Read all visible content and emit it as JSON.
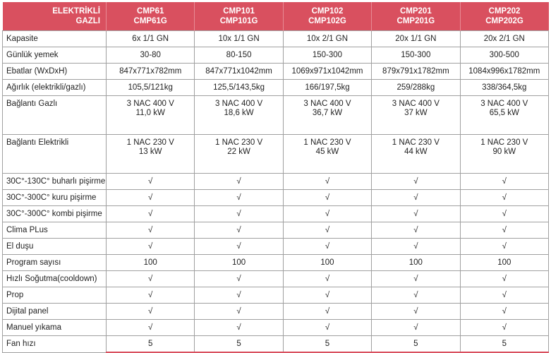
{
  "header": {
    "label": [
      "ELEKTRİKLİ",
      "GAZLI"
    ],
    "models": [
      [
        "CMP61",
        "CMP61G"
      ],
      [
        "CMP101",
        "CMP101G"
      ],
      [
        "CMP102",
        "CMP102G"
      ],
      [
        "CMP201",
        "CMP201G"
      ],
      [
        "CMP202",
        "CMP202G"
      ]
    ]
  },
  "colors": {
    "header_bg": "#d9505f",
    "header_text": "#ffffff"
  },
  "rows": [
    {
      "label": "Kapasite",
      "values": [
        [
          "6x 1/1 GN"
        ],
        [
          "10x 1/1 GN"
        ],
        [
          "10x 2/1 GN"
        ],
        [
          "20x 1/1 GN"
        ],
        [
          "20x 2/1 GN"
        ]
      ]
    },
    {
      "label": "Günlük yemek",
      "values": [
        [
          "30-80"
        ],
        [
          "80-150"
        ],
        [
          "150-300"
        ],
        [
          "150-300"
        ],
        [
          "300-500"
        ]
      ]
    },
    {
      "label": "Ebatlar (WxDxH)",
      "values": [
        [
          "847x771x782mm"
        ],
        [
          "847x771x1042mm"
        ],
        [
          "1069x971x1042mm"
        ],
        [
          "879x791x1782mm"
        ],
        [
          "1084x996x1782mm"
        ]
      ]
    },
    {
      "label": "Ağırlık (elektrikli/gazlı)",
      "values": [
        [
          "105,5/121kg"
        ],
        [
          "125,5/143,5kg"
        ],
        [
          "166/197,5kg"
        ],
        [
          "259/288kg"
        ],
        [
          "338/364,5kg"
        ]
      ]
    },
    {
      "label": "Bağlantı Gazlı",
      "tall": true,
      "values": [
        [
          "3 NAC 400 V",
          "11,0 kW"
        ],
        [
          "3 NAC 400 V",
          "18,6 kW"
        ],
        [
          "3 NAC 400 V",
          "36,7 kW"
        ],
        [
          "3 NAC 400 V",
          "37 kW"
        ],
        [
          "3 NAC 400 V",
          "65,5 kW"
        ]
      ]
    },
    {
      "label": "Bağlantı Elektrikli",
      "tall": true,
      "values": [
        [
          "1 NAC 230 V",
          "13 kW"
        ],
        [
          "1 NAC 230 V",
          "22 kW"
        ],
        [
          "1 NAC 230 V",
          "45 kW"
        ],
        [
          "1 NAC 230 V",
          "44 kW"
        ],
        [
          "1 NAC 230 V",
          "90 kW"
        ]
      ]
    },
    {
      "label": "30C°-130C° buharlı pişirme",
      "values": [
        [
          "√"
        ],
        [
          "√"
        ],
        [
          "√"
        ],
        [
          "√"
        ],
        [
          "√"
        ]
      ]
    },
    {
      "label": "30C°-300C° kuru pişirme",
      "values": [
        [
          "√"
        ],
        [
          "√"
        ],
        [
          "√"
        ],
        [
          "√"
        ],
        [
          "√"
        ]
      ]
    },
    {
      "label": "30C°-300C° kombi pişirme",
      "values": [
        [
          "√"
        ],
        [
          "√"
        ],
        [
          "√"
        ],
        [
          "√"
        ],
        [
          "√"
        ]
      ]
    },
    {
      "label": "Clima PLus",
      "values": [
        [
          "√"
        ],
        [
          "√"
        ],
        [
          "√"
        ],
        [
          "√"
        ],
        [
          "√"
        ]
      ]
    },
    {
      "label": "El duşu",
      "values": [
        [
          "√"
        ],
        [
          "√"
        ],
        [
          "√"
        ],
        [
          "√"
        ],
        [
          "√"
        ]
      ]
    },
    {
      "label": "Program sayısı",
      "values": [
        [
          "100"
        ],
        [
          "100"
        ],
        [
          "100"
        ],
        [
          "100"
        ],
        [
          "100"
        ]
      ]
    },
    {
      "label": "Hızlı Soğutma(cooldown)",
      "values": [
        [
          "√"
        ],
        [
          "√"
        ],
        [
          "√"
        ],
        [
          "√"
        ],
        [
          "√"
        ]
      ]
    },
    {
      "label": "Prop",
      "values": [
        [
          "√"
        ],
        [
          "√"
        ],
        [
          "√"
        ],
        [
          "√"
        ],
        [
          "√"
        ]
      ]
    },
    {
      "label": "Dijital  panel",
      "values": [
        [
          "√"
        ],
        [
          "√"
        ],
        [
          "√"
        ],
        [
          "√"
        ],
        [
          "√"
        ]
      ]
    },
    {
      "label": "Manuel yıkama",
      "values": [
        [
          "√"
        ],
        [
          "√"
        ],
        [
          "√"
        ],
        [
          "√"
        ],
        [
          "√"
        ]
      ]
    },
    {
      "label": "Fan hızı",
      "values": [
        [
          "5"
        ],
        [
          "5"
        ],
        [
          "5"
        ],
        [
          "5"
        ],
        [
          "5"
        ]
      ]
    }
  ]
}
